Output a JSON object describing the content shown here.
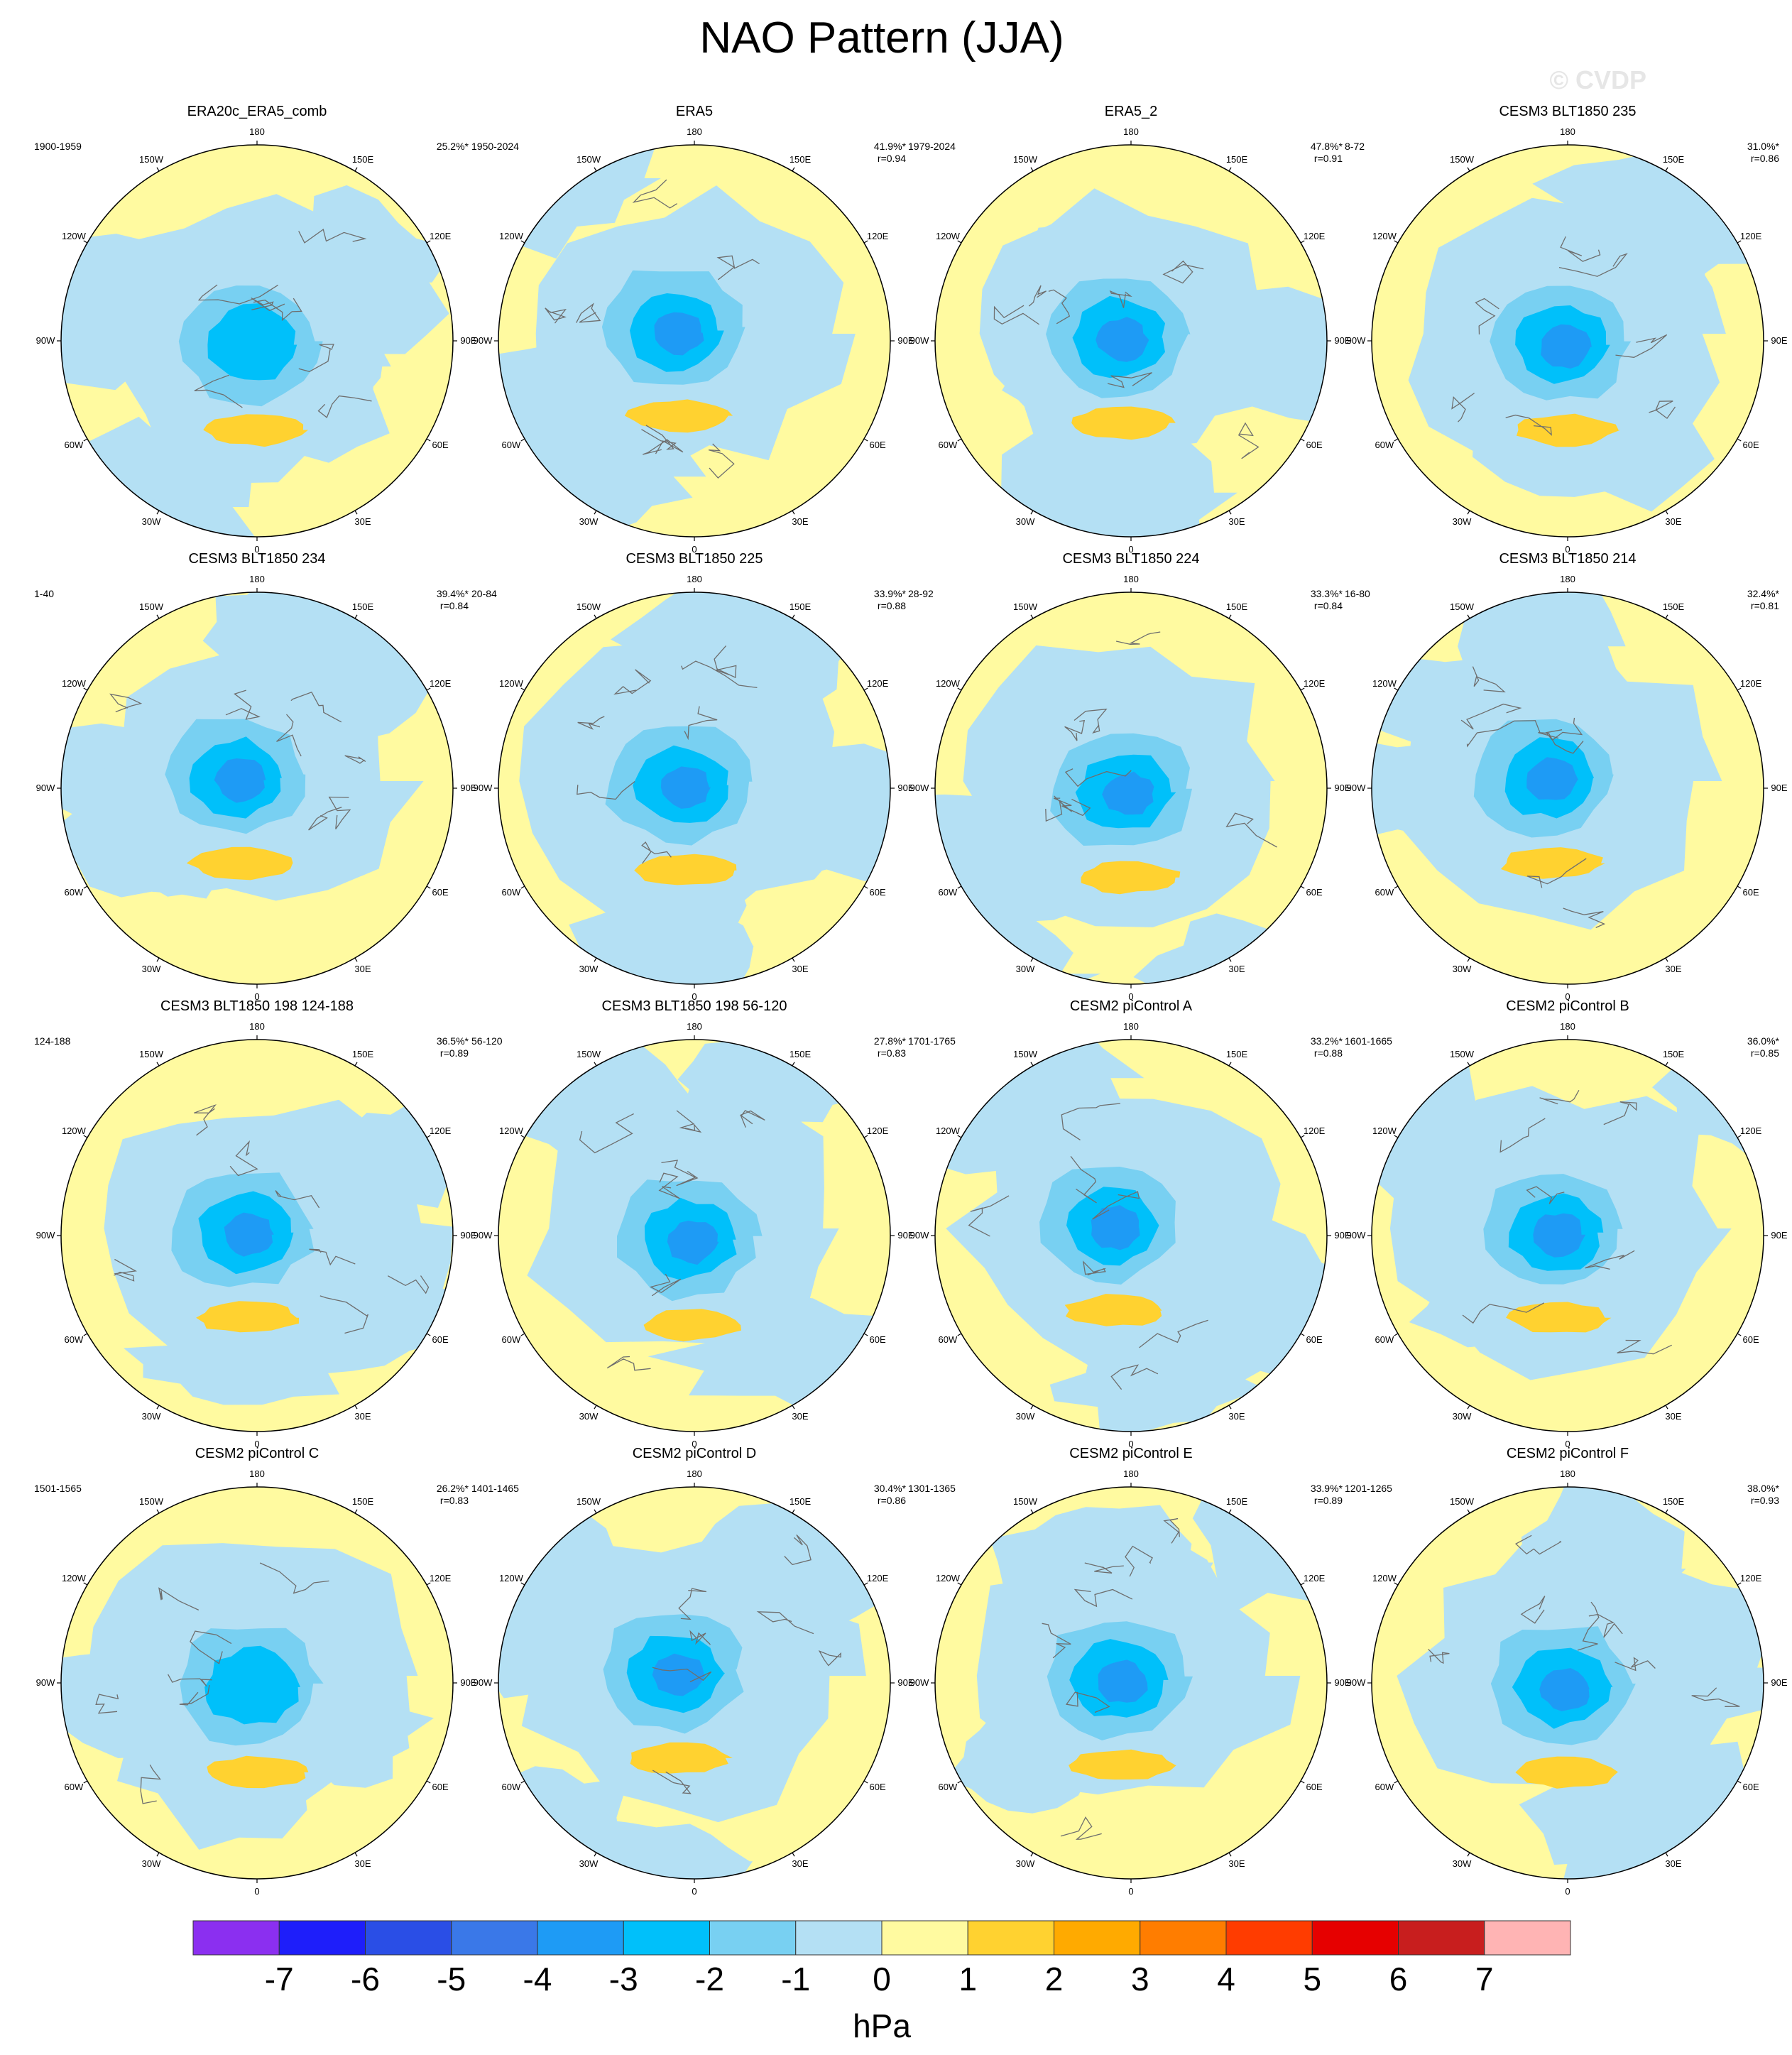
{
  "title": "NAO Pattern (JJA)",
  "watermark": "© CVDP",
  "units": "hPa",
  "lon_labels": [
    "180",
    "150E",
    "120E",
    "90E",
    "60E",
    "30E",
    "0",
    "30W",
    "60W",
    "90W",
    "120W",
    "150W"
  ],
  "colorbar": {
    "ticks": [
      "-7",
      "-6",
      "-5",
      "-4",
      "-3",
      "-2",
      "-1",
      "0",
      "1",
      "2",
      "3",
      "4",
      "5",
      "6",
      "7"
    ],
    "colors": [
      "#8b2ff0",
      "#1e1efa",
      "#2a4ee6",
      "#3a78e8",
      "#1e9bf5",
      "#00c0fa",
      "#78d0f2",
      "#b4e0f4",
      "#fffaa0",
      "#ffd230",
      "#ffaa00",
      "#ff7d00",
      "#ff3c00",
      "#e60000",
      "#c81e1e",
      "#ffb4b4"
    ]
  },
  "panels": [
    {
      "title": "ERA20c_ERA5_comb",
      "period": "1900-1959",
      "pct": "25.2%*",
      "r": ""
    },
    {
      "title": "ERA5",
      "period": "1950-2024",
      "pct": "41.9%*",
      "r": "r=0.94"
    },
    {
      "title": "ERA5_2",
      "period": "1979-2024",
      "pct": "47.8%*",
      "r": "r=0.91"
    },
    {
      "title": "CESM3 BLT1850 235",
      "period": "8-72",
      "pct": "31.0%*",
      "r": "r=0.86"
    },
    {
      "title": "CESM3 BLT1850 234",
      "period": "1-40",
      "pct": "39.4%*",
      "r": "r=0.84"
    },
    {
      "title": "CESM3 BLT1850 225",
      "period": "20-84",
      "pct": "33.9%*",
      "r": "r=0.88"
    },
    {
      "title": "CESM3 BLT1850 224",
      "period": "28-92",
      "pct": "33.3%*",
      "r": "r=0.84"
    },
    {
      "title": "CESM3 BLT1850 214",
      "period": "16-80",
      "pct": "32.4%*",
      "r": "r=0.81"
    },
    {
      "title": "CESM3 BLT1850 198 124-188",
      "period": "124-188",
      "pct": "36.5%*",
      "r": "r=0.89"
    },
    {
      "title": "CESM3 BLT1850 198 56-120",
      "period": "56-120",
      "pct": "27.8%*",
      "r": "r=0.83"
    },
    {
      "title": "CESM2 piControl A",
      "period": "1701-1765",
      "pct": "33.2%*",
      "r": "r=0.88"
    },
    {
      "title": "CESM2 piControl B",
      "period": "1601-1665",
      "pct": "36.0%*",
      "r": "r=0.85"
    },
    {
      "title": "CESM2 piControl C",
      "period": "1501-1565",
      "pct": "26.2%*",
      "r": "r=0.83"
    },
    {
      "title": "CESM2 piControl D",
      "period": "1401-1465",
      "pct": "30.4%*",
      "r": "r=0.86"
    },
    {
      "title": "CESM2 piControl E",
      "period": "1301-1365",
      "pct": "33.9%*",
      "r": "r=0.89"
    },
    {
      "title": "CESM2 piControl F",
      "period": "1201-1265",
      "pct": "38.0%*",
      "r": "r=0.93"
    }
  ]
}
